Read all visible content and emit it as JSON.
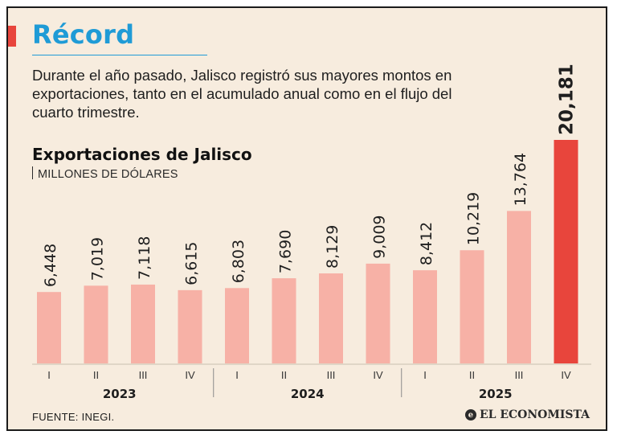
{
  "header": {
    "title": "Récord",
    "intro": "Durante el año pasado, Jalisco registró sus mayores montos en exportaciones, tanto en el acumulado anual como en el flujo del cuarto trimestre."
  },
  "colors": {
    "accent": "#e8453c",
    "headline": "#1f9bd6",
    "bar_normal": "#f7b1a6",
    "bar_highlight": "#e8453c",
    "background": "#f7ecde"
  },
  "chart_data": {
    "type": "bar",
    "title": "Exportaciones de Jalisco",
    "ylabel": "MILLONES DE DÓLARES",
    "categories": [
      "I",
      "II",
      "III",
      "IV",
      "I",
      "II",
      "III",
      "IV",
      "I",
      "II",
      "III",
      "IV"
    ],
    "groups": [
      {
        "label": "2023",
        "categories": [
          "I",
          "II",
          "III",
          "IV"
        ]
      },
      {
        "label": "2024",
        "categories": [
          "I",
          "II",
          "III",
          "IV"
        ]
      },
      {
        "label": "2025",
        "categories": [
          "I",
          "II",
          "III",
          "IV"
        ]
      }
    ],
    "values": [
      6448,
      7019,
      7118,
      6615,
      6803,
      7690,
      8129,
      9009,
      8412,
      10219,
      13764,
      20181
    ],
    "value_labels": [
      "6,448",
      "7,019",
      "7,118",
      "6,615",
      "6,803",
      "7,690",
      "8,129",
      "9,009",
      "8,412",
      "10,219",
      "13,764",
      "20,181"
    ],
    "highlight_index": 11,
    "ylim": [
      0,
      20181
    ],
    "grid": false,
    "legend": "none"
  },
  "footer": {
    "source": "FUENTE: INEGI.",
    "brand": "EL ECONOMISTA",
    "brand_mark": "e"
  }
}
